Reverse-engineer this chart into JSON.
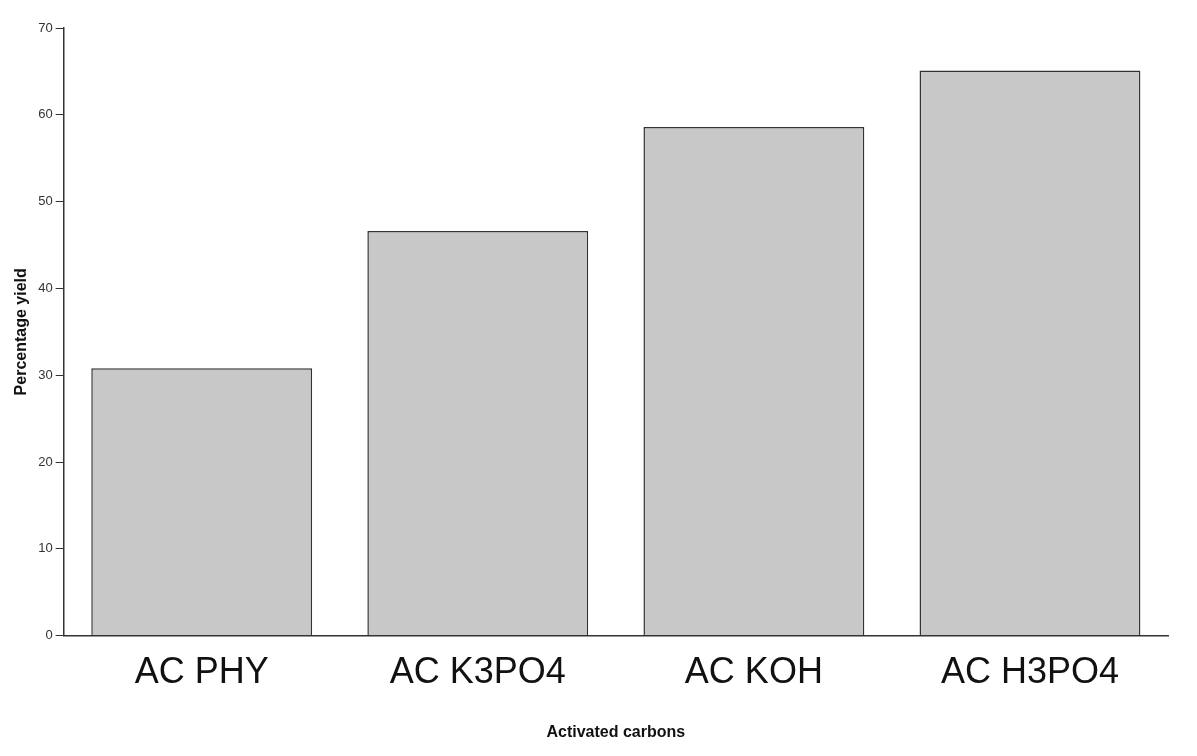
{
  "chart_data": {
    "type": "bar",
    "xlabel": "Activated carbons",
    "ylabel": "Percentage yield",
    "categories": [
      "AC PHY",
      "AC K3PO4",
      "AC KOH",
      "AC H3PO4"
    ],
    "values": [
      30.8,
      46.6,
      58.6,
      65.1
    ],
    "color": "#c8c8c8",
    "ylim": [
      0,
      70
    ],
    "yticks": [
      0,
      10,
      20,
      30,
      40,
      50,
      60,
      70
    ],
    "grid": false,
    "legend": false
  }
}
